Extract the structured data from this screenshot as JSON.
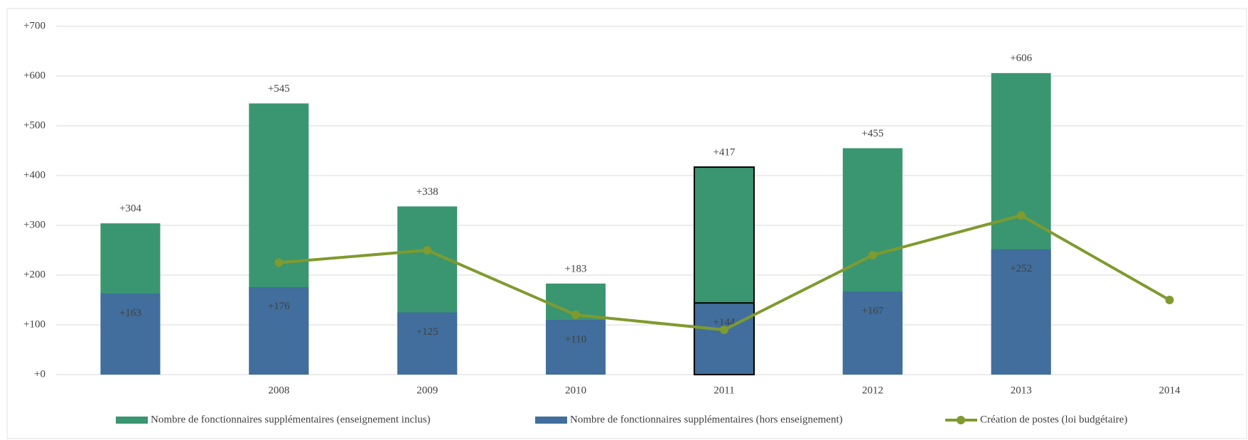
{
  "chart_data": {
    "type": "bar",
    "categories": [
      null,
      "2008",
      "2009",
      "2010",
      "2011",
      "2012",
      "2013",
      "2014"
    ],
    "series": [
      {
        "name": "Nombre de fonctionnaires supplémentaires (enseignement inclus)",
        "type": "bar",
        "color": "#3a9670",
        "values": [
          304,
          545,
          338,
          183,
          417,
          455,
          606,
          null
        ],
        "value_labels": [
          "+304",
          "+545",
          "+338",
          "+183",
          "+417",
          "+455",
          "+606",
          null
        ]
      },
      {
        "name": "Nombre de fonctionnaires supplémentaires (hors enseignement)",
        "type": "bar",
        "color": "#416e9c",
        "values": [
          163,
          176,
          125,
          110,
          144,
          167,
          252,
          null
        ],
        "value_labels": [
          "+163",
          "+176",
          "+125",
          "+110",
          "+144",
          "+167",
          "+252",
          null
        ]
      },
      {
        "name": "Création de postes (loi budgétaire)",
        "type": "line",
        "color": "#7f9a2e",
        "values": [
          null,
          225,
          250,
          120,
          90,
          240,
          320,
          150
        ]
      }
    ],
    "highlight": "2011",
    "ylim": [
      0,
      700
    ],
    "yticks": [
      {
        "value": 0,
        "label": "+0"
      },
      {
        "value": 100,
        "label": "+100"
      },
      {
        "value": 200,
        "label": "+200"
      },
      {
        "value": 300,
        "label": "+300"
      },
      {
        "value": 400,
        "label": "+400"
      },
      {
        "value": 500,
        "label": "+500"
      },
      {
        "value": 600,
        "label": "+600"
      },
      {
        "value": 700,
        "label": "+700"
      }
    ],
    "grid": true,
    "legend": "bottom"
  }
}
